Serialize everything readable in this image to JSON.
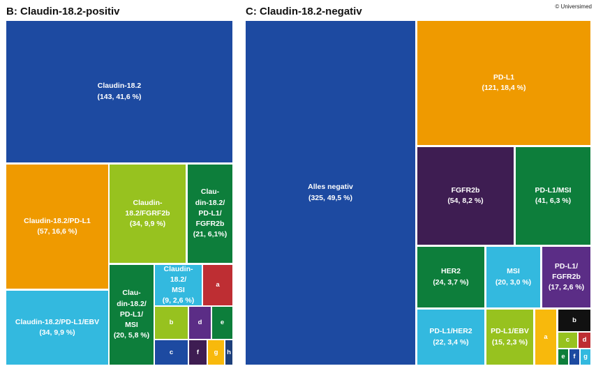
{
  "header": {
    "titleB": "B: Claudin-18.2-positiv",
    "titleC": "C: Claudin-18.2-negativ",
    "credit": "© Universimed"
  },
  "colors": {
    "darkblue": "#1d4aa1",
    "orange": "#ef9a00",
    "lime": "#97c21f",
    "green": "#0d7e3b",
    "cyan": "#33b9df",
    "purple": "#5b2d86",
    "darkpurple": "#3e1d52",
    "red": "#be2e33",
    "yellow": "#f8b90c",
    "navy": "#1d3f7a",
    "black": "#111111"
  },
  "chart_data": [
    {
      "type": "treemap",
      "title": "B: Claudin-18.2-positiv",
      "tiles": [
        {
          "name": "Claudin-18.2",
          "value": "(143, 41,6 %)",
          "color": "darkblue"
        },
        {
          "name": "Claudin-18.2/PD-L1",
          "value": "(57, 16,6 %)",
          "color": "orange"
        },
        {
          "name": "Claudin-18.2/FGRF2b",
          "value": "(34, 9,9 %)",
          "color": "lime"
        },
        {
          "name": "Clau-\ndin-18.2/\nPD-L1/\nFGFR2b",
          "value": "(21, 6,1%)",
          "color": "green"
        },
        {
          "name": "Claudin-18.2/PD-L1/EBV",
          "value": "(34, 9,9 %)",
          "color": "cyan"
        },
        {
          "name": "Clau-\ndin-18.2/\nPD-L1/\nMSI",
          "value": "(20, 5,8 %)",
          "color": "green"
        },
        {
          "name": "Claudin-18.2/\nMSI",
          "value": "(9, 2,6 %)",
          "color": "cyan"
        },
        {
          "name": "a",
          "value": "",
          "color": "red"
        },
        {
          "name": "b",
          "value": "",
          "color": "lime"
        },
        {
          "name": "d",
          "value": "",
          "color": "purple"
        },
        {
          "name": "e",
          "value": "",
          "color": "green"
        },
        {
          "name": "c",
          "value": "",
          "color": "darkblue"
        },
        {
          "name": "f",
          "value": "",
          "color": "darkpurple"
        },
        {
          "name": "g",
          "value": "",
          "color": "yellow"
        },
        {
          "name": "h",
          "value": "",
          "color": "navy"
        }
      ]
    },
    {
      "type": "treemap",
      "title": "C: Claudin-18.2-negativ",
      "tiles": [
        {
          "name": "Alles negativ",
          "value": "(325, 49,5 %)",
          "color": "darkblue"
        },
        {
          "name": "PD-L1",
          "value": "(121, 18,4 %)",
          "color": "orange"
        },
        {
          "name": "FGFR2b",
          "value": "(54, 8,2 %)",
          "color": "darkpurple"
        },
        {
          "name": "PD-L1/MSI",
          "value": "(41, 6,3 %)",
          "color": "green"
        },
        {
          "name": "HER2",
          "value": "(24, 3,7 %)",
          "color": "green"
        },
        {
          "name": "MSI",
          "value": "(20, 3,0 %)",
          "color": "cyan"
        },
        {
          "name": "PD-L1/\nFGFR2b",
          "value": "(17, 2,6 %)",
          "color": "purple"
        },
        {
          "name": "PD-L1/HER2",
          "value": "(22, 3,4 %)",
          "color": "cyan"
        },
        {
          "name": "PD-L1/EBV",
          "value": "(15, 2,3 %)",
          "color": "lime"
        },
        {
          "name": "a",
          "value": "",
          "color": "yellow"
        },
        {
          "name": "b",
          "value": "",
          "color": "black"
        },
        {
          "name": "c",
          "value": "",
          "color": "lime"
        },
        {
          "name": "d",
          "value": "",
          "color": "red"
        },
        {
          "name": "e",
          "value": "",
          "color": "green"
        },
        {
          "name": "f",
          "value": "",
          "color": "darkblue"
        },
        {
          "name": "g",
          "value": "",
          "color": "cyan"
        }
      ]
    }
  ]
}
